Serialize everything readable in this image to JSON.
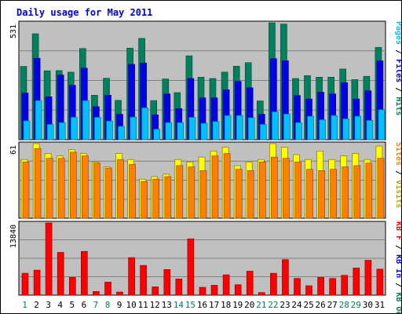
{
  "title": "Daily usage for May 2011",
  "colors": {
    "hits": "#00805c",
    "files": "#0000e6",
    "pages": "#00c0ff",
    "visits": "#ffff00",
    "sites": "#ff8000",
    "kb_in": "#0000ff",
    "kb_out": "#00805c",
    "kb_f": "#ff0000",
    "panel": "#c0c0c0",
    "grid": "#808080"
  },
  "chart_data": [
    {
      "type": "bar",
      "panel": "top",
      "ymax_label": "531",
      "axis_labels": [
        {
          "text": "Pages",
          "color": "#00c0ff"
        },
        {
          "text": " / ",
          "color": "#000000"
        },
        {
          "text": "Files",
          "color": "#0000e6"
        },
        {
          "text": " / ",
          "color": "#000000"
        },
        {
          "text": "Hits",
          "color": "#00805c"
        }
      ],
      "ylim": [
        0,
        531
      ],
      "categories": [
        "1",
        "2",
        "3",
        "4",
        "5",
        "6",
        "7",
        "8",
        "9",
        "10",
        "11",
        "12",
        "13",
        "14",
        "15",
        "16",
        "17",
        "18",
        "19",
        "20",
        "21",
        "22",
        "23",
        "24",
        "25",
        "26",
        "27",
        "28",
        "29",
        "30",
        "31"
      ],
      "weekend_days": [
        1,
        7,
        8,
        14,
        15,
        21,
        22,
        28,
        29
      ],
      "series": [
        {
          "name": "Hits",
          "values": [
            333,
            481,
            313,
            314,
            307,
            414,
            202,
            279,
            179,
            416,
            460,
            178,
            276,
            214,
            381,
            284,
            278,
            307,
            334,
            350,
            176,
            531,
            525,
            278,
            291,
            284,
            284,
            321,
            273,
            288,
            419
          ]
        },
        {
          "name": "Files",
          "values": [
            212,
            370,
            195,
            294,
            247,
            325,
            150,
            202,
            116,
            343,
            349,
            113,
            208,
            141,
            278,
            190,
            190,
            227,
            265,
            236,
            116,
            368,
            359,
            201,
            185,
            216,
            208,
            259,
            185,
            222,
            358
          ]
        },
        {
          "name": "Pages",
          "values": [
            86,
            178,
            70,
            78,
            102,
            178,
            102,
            85,
            61,
            103,
            145,
            48,
            78,
            78,
            102,
            75,
            83,
            110,
            110,
            100,
            70,
            127,
            117,
            78,
            107,
            91,
            110,
            95,
            107,
            88,
            137
          ]
        }
      ]
    },
    {
      "type": "bar",
      "panel": "middle",
      "ymax_label": "61",
      "axis_labels": [
        {
          "text": "Sites",
          "color": "#ff8000"
        },
        {
          "text": " / ",
          "color": "#000000"
        },
        {
          "text": "Visits",
          "color": "#c0a000"
        }
      ],
      "ylim": [
        0,
        61
      ],
      "categories": [
        "1",
        "2",
        "3",
        "4",
        "5",
        "6",
        "7",
        "8",
        "9",
        "10",
        "11",
        "12",
        "13",
        "14",
        "15",
        "16",
        "17",
        "18",
        "19",
        "20",
        "21",
        "22",
        "23",
        "24",
        "25",
        "26",
        "27",
        "28",
        "29",
        "30",
        "31"
      ],
      "series": [
        {
          "name": "Visits",
          "values": [
            48,
            61,
            53,
            51,
            56,
            53,
            46,
            42,
            53,
            48,
            32,
            34,
            36,
            48,
            46,
            50,
            55,
            58,
            43,
            46,
            48,
            61,
            58,
            52,
            48,
            55,
            48,
            51,
            53,
            48,
            59
          ]
        },
        {
          "name": "Sites",
          "values": [
            46,
            57,
            49,
            49,
            54,
            51,
            45,
            41,
            48,
            44,
            30,
            32,
            34,
            43,
            42,
            39,
            51,
            53,
            40,
            39,
            46,
            50,
            49,
            46,
            40,
            39,
            40,
            42,
            43,
            45,
            49
          ]
        }
      ]
    },
    {
      "type": "bar",
      "panel": "bottom",
      "ymax_label": "13840",
      "axis_labels": [
        {
          "text": "KB F",
          "color": "#ff0000"
        },
        {
          "text": " / ",
          "color": "#000000"
        },
        {
          "text": "KB In",
          "color": "#0000ff"
        },
        {
          "text": " / ",
          "color": "#000000"
        },
        {
          "text": "KB Out",
          "color": "#00805c"
        }
      ],
      "ylim": [
        0,
        13840
      ],
      "categories": [
        "1",
        "2",
        "3",
        "4",
        "5",
        "6",
        "7",
        "8",
        "9",
        "10",
        "11",
        "12",
        "13",
        "14",
        "15",
        "16",
        "17",
        "18",
        "19",
        "20",
        "21",
        "22",
        "23",
        "24",
        "25",
        "26",
        "27",
        "28",
        "29",
        "30",
        "31"
      ],
      "series": [
        {
          "name": "KB F",
          "values": [
            4200,
            4800,
            13840,
            8200,
            3400,
            8400,
            700,
            2500,
            600,
            7200,
            5700,
            1600,
            4900,
            3100,
            10800,
            1500,
            1900,
            3900,
            2000,
            4600,
            500,
            4200,
            6800,
            3200,
            1800,
            3400,
            3200,
            3800,
            5200,
            6700,
            5000
          ]
        }
      ]
    }
  ]
}
